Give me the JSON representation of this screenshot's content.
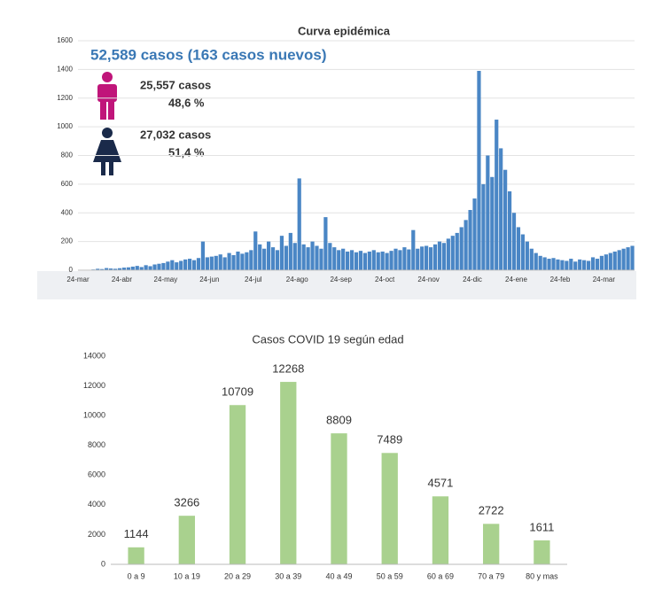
{
  "chart_data": [
    {
      "type": "bar",
      "title": "Curva epidémica",
      "annotations": [
        "52,589  casos (163 casos nuevos)",
        "25,557   casos",
        "48,6 %",
        "27,032   casos",
        "51,4 %"
      ],
      "categories": [
        "24-mar",
        null,
        null,
        null,
        null,
        null,
        null,
        null,
        null,
        null,
        "24-abr",
        null,
        null,
        null,
        null,
        null,
        null,
        null,
        null,
        null,
        "24-may",
        null,
        null,
        null,
        null,
        null,
        null,
        null,
        null,
        null,
        "24-jun",
        null,
        null,
        null,
        null,
        null,
        null,
        null,
        null,
        null,
        "24-jul",
        null,
        null,
        null,
        null,
        null,
        null,
        null,
        null,
        null,
        "24-ago",
        null,
        null,
        null,
        null,
        null,
        null,
        null,
        null,
        null,
        "24-sep",
        null,
        null,
        null,
        null,
        null,
        null,
        null,
        null,
        null,
        "24-oct",
        null,
        null,
        null,
        null,
        null,
        null,
        null,
        null,
        null,
        "24-nov",
        null,
        null,
        null,
        null,
        null,
        null,
        null,
        null,
        null,
        "24-dic",
        null,
        null,
        null,
        null,
        null,
        null,
        null,
        null,
        null,
        "24-ene",
        null,
        null,
        null,
        null,
        null,
        null,
        null,
        null,
        null,
        "24-feb",
        null,
        null,
        null,
        null,
        null,
        null,
        null,
        null,
        null,
        "24-mar",
        null,
        null,
        null,
        null,
        null,
        null
      ],
      "values": [
        0,
        0,
        2,
        5,
        10,
        8,
        15,
        12,
        10,
        14,
        18,
        20,
        25,
        30,
        22,
        35,
        28,
        40,
        45,
        50,
        60,
        70,
        55,
        65,
        75,
        80,
        70,
        85,
        200,
        90,
        95,
        100,
        110,
        90,
        120,
        105,
        130,
        115,
        125,
        140,
        270,
        180,
        150,
        200,
        160,
        140,
        240,
        170,
        260,
        190,
        640,
        180,
        160,
        200,
        170,
        150,
        370,
        190,
        160,
        140,
        150,
        130,
        140,
        125,
        135,
        120,
        130,
        140,
        125,
        130,
        120,
        135,
        150,
        140,
        160,
        145,
        280,
        150,
        165,
        170,
        160,
        180,
        200,
        190,
        220,
        240,
        260,
        300,
        350,
        420,
        500,
        1390,
        600,
        800,
        650,
        1050,
        850,
        700,
        550,
        400,
        300,
        250,
        200,
        150,
        120,
        100,
        90,
        80,
        85,
        75,
        70,
        65,
        80,
        60,
        75,
        70,
        65,
        90,
        80,
        100,
        110,
        120,
        130,
        140,
        150,
        160,
        170
      ],
      "color": "#4a86c5",
      "ylim": [
        0,
        1600
      ],
      "yticks": [
        0,
        200,
        400,
        600,
        800,
        1000,
        1200,
        1400,
        1600
      ],
      "grid": true
    },
    {
      "type": "bar",
      "title": "Casos COVID 19  según edad",
      "categories": [
        "0 a 9",
        "10 a 19",
        "20 a 29",
        "30 a 39",
        "40 a 49",
        "50 a 59",
        "60 a 69",
        "70 a 79",
        "80 y mas"
      ],
      "values": [
        1144,
        3266,
        10709,
        12268,
        8809,
        7489,
        4571,
        2722,
        1611
      ],
      "color": "#a9d18e",
      "ylim": [
        0,
        14000
      ],
      "yticks": [
        0,
        2000,
        4000,
        6000,
        8000,
        10000,
        12000,
        14000
      ],
      "grid": false
    }
  ]
}
